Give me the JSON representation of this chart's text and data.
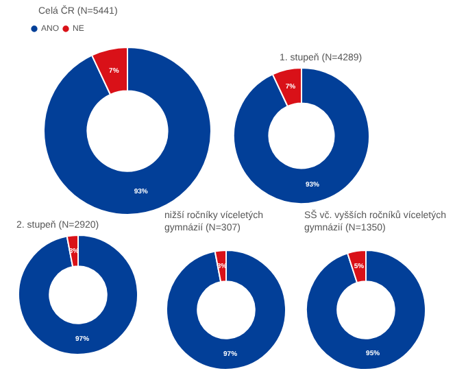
{
  "chart_data": [
    {
      "type": "donut",
      "title": "Celá ČR (N=5441)",
      "categories": [
        "ANO",
        "NE"
      ],
      "values": [
        93,
        7
      ],
      "colors": [
        "#023f98",
        "#d91118"
      ],
      "value_labels": [
        "93%",
        "7%"
      ],
      "legend": "top left"
    },
    {
      "type": "donut",
      "title": "1. stupeň (N=4289)",
      "categories": [
        null,
        null
      ],
      "values": [
        93,
        7
      ],
      "colors": [
        "#023f98",
        "#d91118"
      ],
      "value_labels": [
        "93%",
        "7%"
      ]
    },
    {
      "type": "donut",
      "title": "2. stupeň (N=2920)",
      "categories": [
        null,
        null
      ],
      "values": [
        97,
        3
      ],
      "colors": [
        "#023f98",
        "#d91118"
      ],
      "value_labels": [
        "97%",
        "3%"
      ]
    },
    {
      "type": "donut",
      "title": "nižší ročníky víceletých gymnázií (N=307)",
      "categories": [
        null,
        null
      ],
      "values": [
        97,
        3
      ],
      "colors": [
        "#023f98",
        "#d91118"
      ],
      "value_labels": [
        "97%",
        "3%"
      ]
    },
    {
      "type": "donut",
      "title": "SŠ vč. vyšších ročníků víceletých gymnázií (N=1350)",
      "categories": [
        null,
        null
      ],
      "values": [
        95,
        5
      ],
      "colors": [
        "#023f98",
        "#d91118"
      ],
      "value_labels": [
        "95%",
        "5%"
      ]
    }
  ]
}
